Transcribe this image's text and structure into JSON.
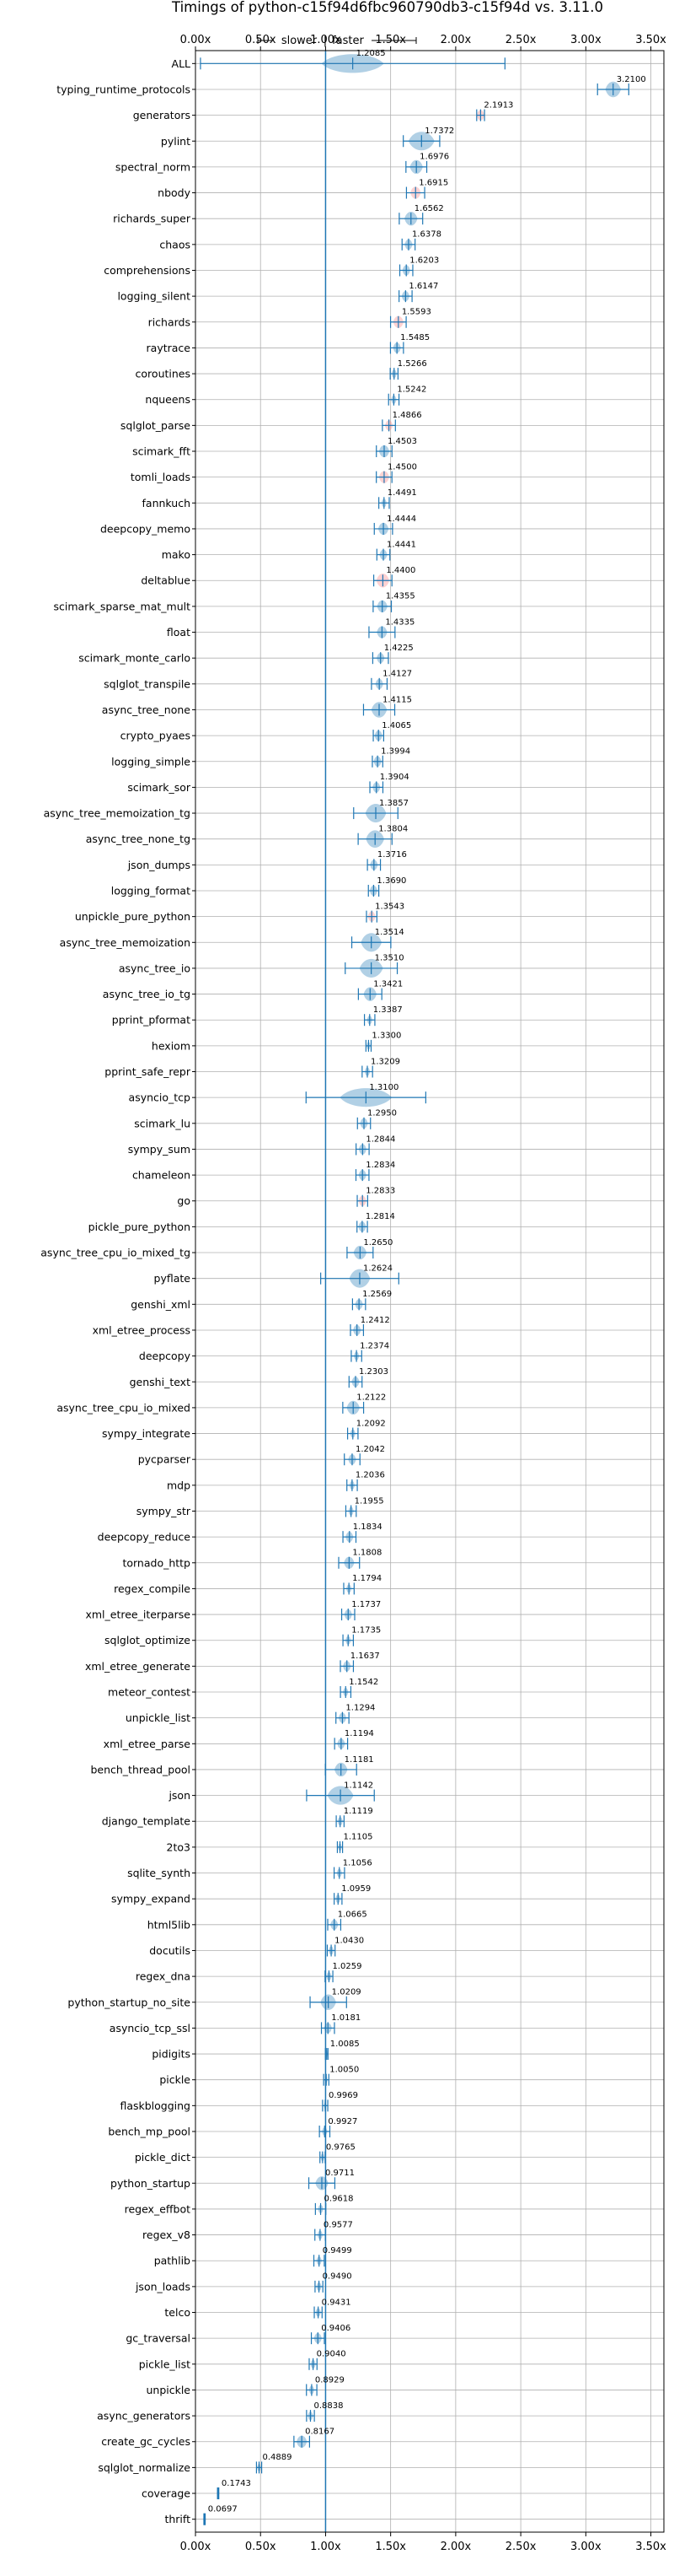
{
  "chart_data": {
    "type": "violin",
    "title": "Timings of python-c15f94d6fbc960790db3-c15f94d vs. 3.11.0",
    "annotation_left": "slower",
    "annotation_right": "faster",
    "x_tick_labels": [
      "0.00x",
      "0.50x",
      "1.00x",
      "1.50x",
      "2.00x",
      "2.50x",
      "3.00x",
      "3.50x"
    ],
    "x_tick_values": [
      0.0,
      0.5,
      1.0,
      1.5,
      2.0,
      2.5,
      3.0,
      3.5
    ],
    "xlim": [
      0.0,
      3.6
    ],
    "grid": true,
    "colors": {
      "violin": "#1f77b4",
      "violin_neg": "#ff7f7f",
      "reference_line": "#1f77b4",
      "grid": "#b0b0b0"
    },
    "benchmarks": [
      {
        "name": "ALL",
        "value": 1.2085,
        "label": "1.2085",
        "spread": 1.17,
        "violin": 0.24,
        "color": "blue"
      },
      {
        "name": "typing_runtime_protocols",
        "value": 3.21,
        "label": "3.2100",
        "spread": 0.12,
        "violin": 0.06,
        "color": "blue"
      },
      {
        "name": "generators",
        "value": 2.1913,
        "label": "2.1913",
        "spread": 0.03,
        "violin": 0.03,
        "color": "red"
      },
      {
        "name": "pylint",
        "value": 1.7372,
        "label": "1.7372",
        "spread": 0.14,
        "violin": 0.1,
        "color": "blue"
      },
      {
        "name": "spectral_norm",
        "value": 1.6976,
        "label": "1.6976",
        "spread": 0.08,
        "violin": 0.05,
        "color": "blue"
      },
      {
        "name": "nbody",
        "value": 1.6915,
        "label": "1.6915",
        "spread": 0.07,
        "violin": 0.04,
        "color": "red"
      },
      {
        "name": "richards_super",
        "value": 1.6562,
        "label": "1.6562",
        "spread": 0.09,
        "violin": 0.05,
        "color": "blue"
      },
      {
        "name": "chaos",
        "value": 1.6378,
        "label": "1.6378",
        "spread": 0.05,
        "violin": 0.03,
        "color": "blue"
      },
      {
        "name": "comprehensions",
        "value": 1.6203,
        "label": "1.6203",
        "spread": 0.05,
        "violin": 0.03,
        "color": "blue"
      },
      {
        "name": "logging_silent",
        "value": 1.6147,
        "label": "1.6147",
        "spread": 0.05,
        "violin": 0.03,
        "color": "blue"
      },
      {
        "name": "richards",
        "value": 1.5593,
        "label": "1.5593",
        "spread": 0.06,
        "violin": 0.04,
        "color": "red"
      },
      {
        "name": "raytrace",
        "value": 1.5485,
        "label": "1.5485",
        "spread": 0.05,
        "violin": 0.03,
        "color": "blue"
      },
      {
        "name": "coroutines",
        "value": 1.5266,
        "label": "1.5266",
        "spread": 0.03,
        "violin": 0.02,
        "color": "blue"
      },
      {
        "name": "nqueens",
        "value": 1.5242,
        "label": "1.5242",
        "spread": 0.04,
        "violin": 0.02,
        "color": "blue"
      },
      {
        "name": "sqlglot_parse",
        "value": 1.4866,
        "label": "1.4866",
        "spread": 0.05,
        "violin": 0.03,
        "color": "red"
      },
      {
        "name": "scimark_fft",
        "value": 1.4503,
        "label": "1.4503",
        "spread": 0.06,
        "violin": 0.04,
        "color": "blue"
      },
      {
        "name": "tomli_loads",
        "value": 1.45,
        "label": "1.4500",
        "spread": 0.06,
        "violin": 0.04,
        "color": "red"
      },
      {
        "name": "fannkuch",
        "value": 1.4491,
        "label": "1.4491",
        "spread": 0.04,
        "violin": 0.02,
        "color": "blue"
      },
      {
        "name": "deepcopy_memo",
        "value": 1.4444,
        "label": "1.4444",
        "spread": 0.07,
        "violin": 0.04,
        "color": "blue"
      },
      {
        "name": "mako",
        "value": 1.4441,
        "label": "1.4441",
        "spread": 0.05,
        "violin": 0.03,
        "color": "blue"
      },
      {
        "name": "deltablue",
        "value": 1.44,
        "label": "1.4400",
        "spread": 0.07,
        "violin": 0.05,
        "color": "red"
      },
      {
        "name": "scimark_sparse_mat_mult",
        "value": 1.4355,
        "label": "1.4355",
        "spread": 0.07,
        "violin": 0.04,
        "color": "blue"
      },
      {
        "name": "float",
        "value": 1.4335,
        "label": "1.4335",
        "spread": 0.1,
        "violin": 0.04,
        "color": "blue"
      },
      {
        "name": "scimark_monte_carlo",
        "value": 1.4225,
        "label": "1.4225",
        "spread": 0.06,
        "violin": 0.03,
        "color": "blue"
      },
      {
        "name": "sqlglot_transpile",
        "value": 1.4127,
        "label": "1.4127",
        "spread": 0.06,
        "violin": 0.03,
        "color": "blue"
      },
      {
        "name": "async_tree_none",
        "value": 1.4115,
        "label": "1.4115",
        "spread": 0.12,
        "violin": 0.06,
        "color": "blue"
      },
      {
        "name": "crypto_pyaes",
        "value": 1.4065,
        "label": "1.4065",
        "spread": 0.04,
        "violin": 0.03,
        "color": "blue"
      },
      {
        "name": "logging_simple",
        "value": 1.3994,
        "label": "1.3994",
        "spread": 0.04,
        "violin": 0.03,
        "color": "blue"
      },
      {
        "name": "scimark_sor",
        "value": 1.3904,
        "label": "1.3904",
        "spread": 0.05,
        "violin": 0.03,
        "color": "blue"
      },
      {
        "name": "async_tree_memoization_tg",
        "value": 1.3857,
        "label": "1.3857",
        "spread": 0.17,
        "violin": 0.08,
        "color": "blue"
      },
      {
        "name": "async_tree_none_tg",
        "value": 1.3804,
        "label": "1.3804",
        "spread": 0.13,
        "violin": 0.07,
        "color": "blue"
      },
      {
        "name": "json_dumps",
        "value": 1.3716,
        "label": "1.3716",
        "spread": 0.05,
        "violin": 0.03,
        "color": "blue"
      },
      {
        "name": "logging_format",
        "value": 1.369,
        "label": "1.3690",
        "spread": 0.04,
        "violin": 0.03,
        "color": "blue"
      },
      {
        "name": "unpickle_pure_python",
        "value": 1.3543,
        "label": "1.3543",
        "spread": 0.04,
        "violin": 0.03,
        "color": "red"
      },
      {
        "name": "async_tree_memoization",
        "value": 1.3514,
        "label": "1.3514",
        "spread": 0.15,
        "violin": 0.08,
        "color": "blue"
      },
      {
        "name": "async_tree_io",
        "value": 1.351,
        "label": "1.3510",
        "spread": 0.2,
        "violin": 0.09,
        "color": "blue"
      },
      {
        "name": "async_tree_io_tg",
        "value": 1.3421,
        "label": "1.3421",
        "spread": 0.09,
        "violin": 0.05,
        "color": "blue"
      },
      {
        "name": "pprint_pformat",
        "value": 1.3387,
        "label": "1.3387",
        "spread": 0.04,
        "violin": 0.02,
        "color": "blue"
      },
      {
        "name": "hexiom",
        "value": 1.33,
        "label": "1.3300",
        "spread": 0.02,
        "violin": 0.015,
        "color": "blue"
      },
      {
        "name": "pprint_safe_repr",
        "value": 1.3209,
        "label": "1.3209",
        "spread": 0.04,
        "violin": 0.02,
        "color": "blue"
      },
      {
        "name": "asyncio_tcp",
        "value": 1.31,
        "label": "1.3100",
        "spread": 0.46,
        "violin": 0.2,
        "color": "blue"
      },
      {
        "name": "scimark_lu",
        "value": 1.295,
        "label": "1.2950",
        "spread": 0.05,
        "violin": 0.03,
        "color": "blue"
      },
      {
        "name": "sympy_sum",
        "value": 1.2844,
        "label": "1.2844",
        "spread": 0.05,
        "violin": 0.03,
        "color": "blue"
      },
      {
        "name": "chameleon",
        "value": 1.2834,
        "label": "1.2834",
        "spread": 0.05,
        "violin": 0.03,
        "color": "blue"
      },
      {
        "name": "go",
        "value": 1.2833,
        "label": "1.2833",
        "spread": 0.04,
        "violin": 0.03,
        "color": "red"
      },
      {
        "name": "pickle_pure_python",
        "value": 1.2814,
        "label": "1.2814",
        "spread": 0.04,
        "violin": 0.03,
        "color": "blue"
      },
      {
        "name": "async_tree_cpu_io_mixed_tg",
        "value": 1.265,
        "label": "1.2650",
        "spread": 0.1,
        "violin": 0.05,
        "color": "blue"
      },
      {
        "name": "pyflate",
        "value": 1.2624,
        "label": "1.2624",
        "spread": 0.3,
        "violin": 0.08,
        "color": "blue"
      },
      {
        "name": "genshi_xml",
        "value": 1.2569,
        "label": "1.2569",
        "spread": 0.05,
        "violin": 0.03,
        "color": "blue"
      },
      {
        "name": "xml_etree_process",
        "value": 1.2412,
        "label": "1.2412",
        "spread": 0.05,
        "violin": 0.03,
        "color": "blue"
      },
      {
        "name": "deepcopy",
        "value": 1.2374,
        "label": "1.2374",
        "spread": 0.04,
        "violin": 0.02,
        "color": "blue"
      },
      {
        "name": "genshi_text",
        "value": 1.2303,
        "label": "1.2303",
        "spread": 0.05,
        "violin": 0.03,
        "color": "blue"
      },
      {
        "name": "async_tree_cpu_io_mixed",
        "value": 1.2122,
        "label": "1.2122",
        "spread": 0.08,
        "violin": 0.05,
        "color": "blue"
      },
      {
        "name": "sympy_integrate",
        "value": 1.2092,
        "label": "1.2092",
        "spread": 0.04,
        "violin": 0.02,
        "color": "blue"
      },
      {
        "name": "pycparser",
        "value": 1.2042,
        "label": "1.2042",
        "spread": 0.06,
        "violin": 0.03,
        "color": "blue"
      },
      {
        "name": "mdp",
        "value": 1.2036,
        "label": "1.2036",
        "spread": 0.04,
        "violin": 0.02,
        "color": "blue"
      },
      {
        "name": "sympy_str",
        "value": 1.1955,
        "label": "1.1955",
        "spread": 0.04,
        "violin": 0.02,
        "color": "blue"
      },
      {
        "name": "deepcopy_reduce",
        "value": 1.1834,
        "label": "1.1834",
        "spread": 0.05,
        "violin": 0.03,
        "color": "blue"
      },
      {
        "name": "tornado_http",
        "value": 1.1808,
        "label": "1.1808",
        "spread": 0.08,
        "violin": 0.04,
        "color": "blue"
      },
      {
        "name": "regex_compile",
        "value": 1.1794,
        "label": "1.1794",
        "spread": 0.04,
        "violin": 0.02,
        "color": "blue"
      },
      {
        "name": "xml_etree_iterparse",
        "value": 1.1737,
        "label": "1.1737",
        "spread": 0.05,
        "violin": 0.03,
        "color": "blue"
      },
      {
        "name": "sqlglot_optimize",
        "value": 1.1735,
        "label": "1.1735",
        "spread": 0.04,
        "violin": 0.02,
        "color": "blue"
      },
      {
        "name": "xml_etree_generate",
        "value": 1.1637,
        "label": "1.1637",
        "spread": 0.05,
        "violin": 0.03,
        "color": "blue"
      },
      {
        "name": "meteor_contest",
        "value": 1.1542,
        "label": "1.1542",
        "spread": 0.04,
        "violin": 0.02,
        "color": "blue"
      },
      {
        "name": "unpickle_list",
        "value": 1.1294,
        "label": "1.1294",
        "spread": 0.05,
        "violin": 0.03,
        "color": "blue"
      },
      {
        "name": "xml_etree_parse",
        "value": 1.1194,
        "label": "1.1194",
        "spread": 0.05,
        "violin": 0.03,
        "color": "blue"
      },
      {
        "name": "bench_thread_pool",
        "value": 1.1181,
        "label": "1.1181",
        "spread": 0.12,
        "violin": 0.05,
        "color": "blue"
      },
      {
        "name": "json",
        "value": 1.1142,
        "label": "1.1142",
        "spread": 0.26,
        "violin": 0.1,
        "color": "blue"
      },
      {
        "name": "django_template",
        "value": 1.1119,
        "label": "1.1119",
        "spread": 0.03,
        "violin": 0.02,
        "color": "blue"
      },
      {
        "name": "2to3",
        "value": 1.1105,
        "label": "1.1105",
        "spread": 0.02,
        "violin": 0.015,
        "color": "blue"
      },
      {
        "name": "sqlite_synth",
        "value": 1.1056,
        "label": "1.1056",
        "spread": 0.04,
        "violin": 0.02,
        "color": "blue"
      },
      {
        "name": "sympy_expand",
        "value": 1.0959,
        "label": "1.0959",
        "spread": 0.03,
        "violin": 0.02,
        "color": "blue"
      },
      {
        "name": "html5lib",
        "value": 1.0665,
        "label": "1.0665",
        "spread": 0.05,
        "violin": 0.03,
        "color": "blue"
      },
      {
        "name": "docutils",
        "value": 1.043,
        "label": "1.0430",
        "spread": 0.03,
        "violin": 0.02,
        "color": "blue"
      },
      {
        "name": "regex_dna",
        "value": 1.0259,
        "label": "1.0259",
        "spread": 0.03,
        "violin": 0.02,
        "color": "blue"
      },
      {
        "name": "python_startup_no_site",
        "value": 1.0209,
        "label": "1.0209",
        "spread": 0.14,
        "violin": 0.06,
        "color": "blue"
      },
      {
        "name": "asyncio_tcp_ssl",
        "value": 1.0181,
        "label": "1.0181",
        "spread": 0.05,
        "violin": 0.03,
        "color": "blue"
      },
      {
        "name": "pidigits",
        "value": 1.0085,
        "label": "1.0085",
        "spread": 0.01,
        "violin": 0.01,
        "color": "blue"
      },
      {
        "name": "pickle",
        "value": 1.005,
        "label": "1.0050",
        "spread": 0.02,
        "violin": 0.01,
        "color": "blue"
      },
      {
        "name": "flaskblogging",
        "value": 0.9969,
        "label": "0.9969",
        "spread": 0.02,
        "violin": 0.01,
        "color": "blue"
      },
      {
        "name": "bench_mp_pool",
        "value": 0.9927,
        "label": "0.9927",
        "spread": 0.04,
        "violin": 0.02,
        "color": "blue"
      },
      {
        "name": "pickle_dict",
        "value": 0.9765,
        "label": "0.9765",
        "spread": 0.02,
        "violin": 0.015,
        "color": "blue"
      },
      {
        "name": "python_startup",
        "value": 0.9711,
        "label": "0.9711",
        "spread": 0.1,
        "violin": 0.05,
        "color": "blue"
      },
      {
        "name": "regex_effbot",
        "value": 0.9618,
        "label": "0.9618",
        "spread": 0.04,
        "violin": 0.02,
        "color": "blue"
      },
      {
        "name": "regex_v8",
        "value": 0.9577,
        "label": "0.9577",
        "spread": 0.04,
        "violin": 0.02,
        "color": "blue"
      },
      {
        "name": "pathlib",
        "value": 0.9499,
        "label": "0.9499",
        "spread": 0.04,
        "violin": 0.02,
        "color": "blue"
      },
      {
        "name": "json_loads",
        "value": 0.949,
        "label": "0.9490",
        "spread": 0.03,
        "violin": 0.02,
        "color": "blue"
      },
      {
        "name": "telco",
        "value": 0.9431,
        "label": "0.9431",
        "spread": 0.03,
        "violin": 0.02,
        "color": "blue"
      },
      {
        "name": "gc_traversal",
        "value": 0.9406,
        "label": "0.9406",
        "spread": 0.05,
        "violin": 0.03,
        "color": "blue"
      },
      {
        "name": "pickle_list",
        "value": 0.904,
        "label": "0.9040",
        "spread": 0.03,
        "violin": 0.02,
        "color": "blue"
      },
      {
        "name": "unpickle",
        "value": 0.8929,
        "label": "0.8929",
        "spread": 0.04,
        "violin": 0.02,
        "color": "blue"
      },
      {
        "name": "async_generators",
        "value": 0.8838,
        "label": "0.8838",
        "spread": 0.03,
        "violin": 0.02,
        "color": "blue"
      },
      {
        "name": "create_gc_cycles",
        "value": 0.8167,
        "label": "0.8167",
        "spread": 0.06,
        "violin": 0.04,
        "color": "blue"
      },
      {
        "name": "sqlglot_normalize",
        "value": 0.4889,
        "label": "0.4889",
        "spread": 0.02,
        "violin": 0.015,
        "color": "blue"
      },
      {
        "name": "coverage",
        "value": 0.1743,
        "label": "0.1743",
        "spread": 0.005,
        "violin": 0.005,
        "color": "blue"
      },
      {
        "name": "thrift",
        "value": 0.0697,
        "label": "0.0697",
        "spread": 0.005,
        "violin": 0.005,
        "color": "blue"
      }
    ]
  }
}
